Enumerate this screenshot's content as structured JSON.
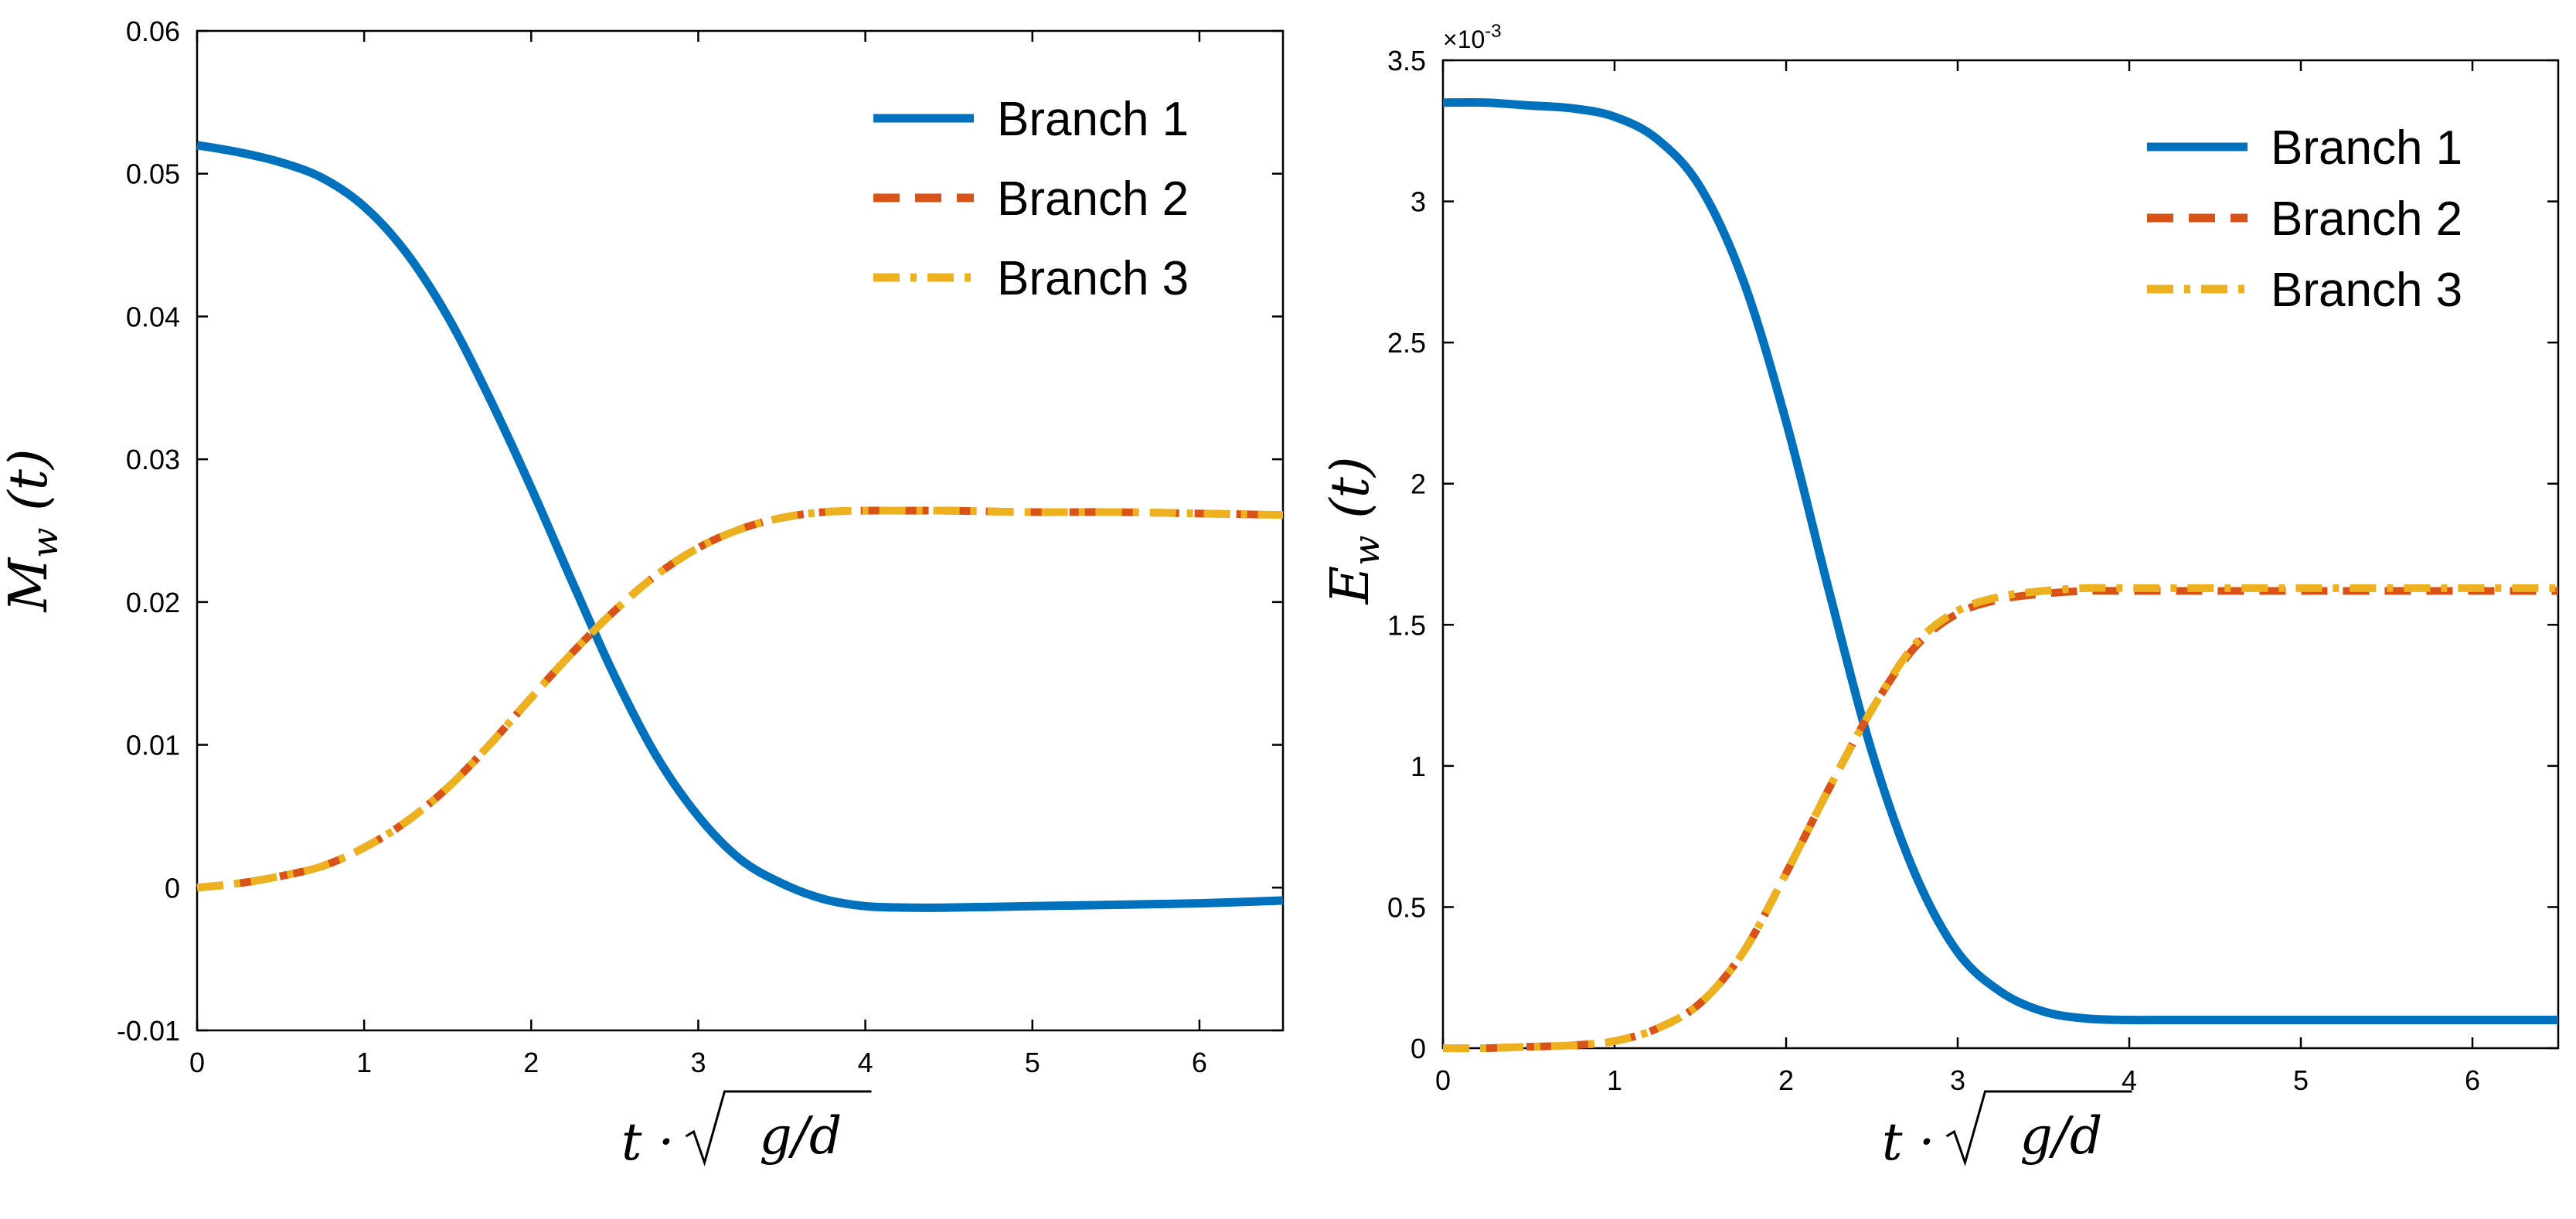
{
  "chart_data": [
    {
      "type": "line",
      "ylabel": "M_w (t)",
      "xlabel": "t · √(g/d)",
      "xlim": [
        0,
        6.5
      ],
      "ylim": [
        -0.01,
        0.06
      ],
      "xticks": [
        0,
        1,
        2,
        3,
        4,
        5,
        6
      ],
      "xtick_labels": [
        "0",
        "1",
        "2",
        "3",
        "4",
        "5",
        "6"
      ],
      "yticks": [
        -0.01,
        0,
        0.01,
        0.02,
        0.03,
        0.04,
        0.05,
        0.06
      ],
      "ytick_labels": [
        "-0.01",
        "0",
        "0.01",
        "0.02",
        "0.03",
        "0.04",
        "0.05",
        "0.06"
      ],
      "grid": false,
      "legend_position": "top-right",
      "x": [
        0,
        0.25,
        0.5,
        0.75,
        1.0,
        1.25,
        1.5,
        1.75,
        2.0,
        2.25,
        2.5,
        2.75,
        3.0,
        3.25,
        3.5,
        3.75,
        4.0,
        4.25,
        4.5,
        5.0,
        5.5,
        6.0,
        6.5
      ],
      "series": [
        {
          "name": "Branch 1",
          "style": "solid",
          "color": "#0072BD",
          "values": [
            0.052,
            0.0515,
            0.0508,
            0.0497,
            0.0477,
            0.0445,
            0.04,
            0.0343,
            0.028,
            0.0213,
            0.0148,
            0.0092,
            0.005,
            0.002,
            0.0003,
            -0.0008,
            -0.0013,
            -0.0014,
            -0.0014,
            -0.0013,
            -0.0012,
            -0.0011,
            -0.0009
          ]
        },
        {
          "name": "Branch 2",
          "style": "dashed",
          "color": "#D95319",
          "values": [
            0.0,
            0.0003,
            0.0008,
            0.0015,
            0.0028,
            0.0046,
            0.007,
            0.01,
            0.0133,
            0.0165,
            0.0194,
            0.0219,
            0.0238,
            0.0251,
            0.0259,
            0.0263,
            0.0264,
            0.0264,
            0.0264,
            0.0263,
            0.0263,
            0.0262,
            0.0261
          ]
        },
        {
          "name": "Branch 3",
          "style": "dashdot",
          "color": "#EDB120",
          "values": [
            0.0,
            0.0003,
            0.0008,
            0.0015,
            0.0028,
            0.0046,
            0.007,
            0.01,
            0.0133,
            0.0165,
            0.0194,
            0.0219,
            0.0238,
            0.0251,
            0.0259,
            0.0263,
            0.0264,
            0.0264,
            0.0264,
            0.0263,
            0.0263,
            0.0262,
            0.0261
          ]
        }
      ]
    },
    {
      "type": "line",
      "ylabel": "E_w (t)",
      "xlabel": "t · √(g/d)",
      "multiplier": "×10^-3",
      "xlim": [
        0,
        6.5
      ],
      "ylim": [
        0,
        3.5
      ],
      "xticks": [
        0,
        1,
        2,
        3,
        4,
        5,
        6
      ],
      "xtick_labels": [
        "0",
        "1",
        "2",
        "3",
        "4",
        "5",
        "6"
      ],
      "yticks": [
        0,
        0.5,
        1,
        1.5,
        2,
        2.5,
        3,
        3.5
      ],
      "ytick_labels": [
        "0",
        "0.5",
        "1",
        "1.5",
        "2",
        "2.5",
        "3",
        "3.5"
      ],
      "grid": false,
      "legend_position": "top-right",
      "x": [
        0,
        0.25,
        0.5,
        0.75,
        1.0,
        1.25,
        1.5,
        1.75,
        2.0,
        2.25,
        2.5,
        2.75,
        3.0,
        3.25,
        3.5,
        3.75,
        4.0,
        4.25,
        4.5,
        5.0,
        5.5,
        6.0,
        6.5
      ],
      "series": [
        {
          "name": "Branch 1",
          "style": "solid",
          "color": "#0072BD",
          "values": [
            3.35,
            3.35,
            3.34,
            3.33,
            3.3,
            3.22,
            3.05,
            2.72,
            2.22,
            1.62,
            1.05,
            0.62,
            0.34,
            0.2,
            0.13,
            0.105,
            0.1,
            0.1,
            0.1,
            0.1,
            0.1,
            0.1,
            0.1
          ]
        },
        {
          "name": "Branch 2",
          "style": "dashed",
          "color": "#D95319",
          "values": [
            0.0,
            0.0,
            0.005,
            0.01,
            0.025,
            0.07,
            0.16,
            0.34,
            0.62,
            0.92,
            1.2,
            1.42,
            1.54,
            1.59,
            1.61,
            1.62,
            1.62,
            1.62,
            1.62,
            1.62,
            1.62,
            1.62,
            1.62
          ]
        },
        {
          "name": "Branch 3",
          "style": "dashdot",
          "color": "#EDB120",
          "values": [
            0.0,
            0.0,
            0.005,
            0.01,
            0.025,
            0.07,
            0.16,
            0.34,
            0.62,
            0.92,
            1.2,
            1.43,
            1.55,
            1.6,
            1.62,
            1.63,
            1.63,
            1.63,
            1.63,
            1.63,
            1.63,
            1.63,
            1.63
          ]
        }
      ]
    }
  ]
}
